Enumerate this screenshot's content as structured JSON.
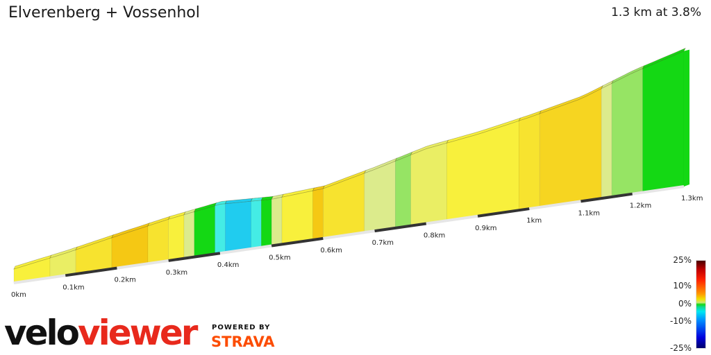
{
  "header": {
    "title": "Elverenberg + Vossenhol",
    "summary": "1.3 km at 3.8%"
  },
  "chart_data": {
    "type": "area",
    "title": "Elverenberg + Vossenhol",
    "subtitle": "1.3 km at 3.8%",
    "xlabel": "",
    "ylabel": "",
    "x_unit": "km",
    "xlim": [
      0,
      1.3
    ],
    "tick_labels": [
      "0km",
      "0.1km",
      "0.2km",
      "0.3km",
      "0.4km",
      "0.5km",
      "0.6km",
      "0.7km",
      "0.8km",
      "0.9km",
      "1km",
      "1.1km",
      "1.2km",
      "1.3km"
    ],
    "tick_values": [
      0,
      0.1,
      0.2,
      0.3,
      0.4,
      0.5,
      0.6,
      0.7,
      0.8,
      0.9,
      1.0,
      1.1,
      1.2,
      1.3
    ],
    "relative_elevation_m": [
      0,
      3.4,
      7.4,
      11.2,
      14.3,
      13.3,
      14.6,
      19.4,
      24.8,
      27.6,
      31.5,
      36.0,
      43.5,
      49.4
    ],
    "segments": [
      {
        "start": 0.0,
        "end": 0.07,
        "grade": 4
      },
      {
        "start": 0.07,
        "end": 0.12,
        "grade": 3
      },
      {
        "start": 0.12,
        "end": 0.19,
        "grade": 5
      },
      {
        "start": 0.19,
        "end": 0.26,
        "grade": 7
      },
      {
        "start": 0.26,
        "end": 0.3,
        "grade": 5
      },
      {
        "start": 0.3,
        "end": 0.33,
        "grade": 4
      },
      {
        "start": 0.33,
        "end": 0.35,
        "grade": 2
      },
      {
        "start": 0.35,
        "end": 0.39,
        "grade": 0
      },
      {
        "start": 0.39,
        "end": 0.41,
        "grade": -4
      },
      {
        "start": 0.41,
        "end": 0.46,
        "grade": -6
      },
      {
        "start": 0.46,
        "end": 0.48,
        "grade": -4
      },
      {
        "start": 0.48,
        "end": 0.5,
        "grade": 0
      },
      {
        "start": 0.5,
        "end": 0.52,
        "grade": 2
      },
      {
        "start": 0.52,
        "end": 0.58,
        "grade": 4
      },
      {
        "start": 0.58,
        "end": 0.6,
        "grade": 7
      },
      {
        "start": 0.6,
        "end": 0.68,
        "grade": 5
      },
      {
        "start": 0.68,
        "end": 0.74,
        "grade": 2
      },
      {
        "start": 0.74,
        "end": 0.77,
        "grade": 1
      },
      {
        "start": 0.77,
        "end": 0.84,
        "grade": 3
      },
      {
        "start": 0.84,
        "end": 0.98,
        "grade": 4
      },
      {
        "start": 0.98,
        "end": 1.02,
        "grade": 5
      },
      {
        "start": 1.02,
        "end": 1.14,
        "grade": 6
      },
      {
        "start": 1.14,
        "end": 1.16,
        "grade": 2
      },
      {
        "start": 1.16,
        "end": 1.22,
        "grade": 1
      },
      {
        "start": 1.22,
        "end": 1.3,
        "grade": 0
      }
    ],
    "color_scale": {
      "labels": [
        "25%",
        "10%",
        "0%",
        "-10%",
        "-25%"
      ],
      "values": [
        25,
        10,
        0,
        -10,
        -25
      ]
    }
  },
  "colors": {
    "accent": "#e8291c",
    "strava": "#fc4c02"
  },
  "branding": {
    "logo_part1": "velo",
    "logo_part2": "viewer",
    "powered_by": "POWERED BY",
    "strava": "STRAVA"
  }
}
